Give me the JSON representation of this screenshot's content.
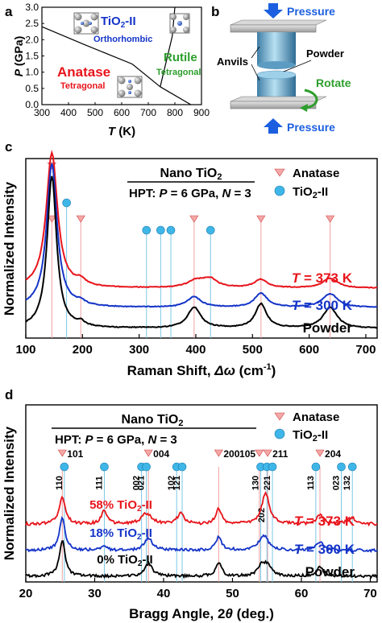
{
  "panels": {
    "a": "a",
    "b": "b",
    "c": "c",
    "d": "d"
  },
  "colors": {
    "red": "#e8141b",
    "blue": "#1434c8",
    "black": "#000000",
    "green": "#2c9e2c",
    "arrow_blue": "#1b5fe0",
    "tick_red": "#f2a0a0",
    "tick_blue": "#7cc8e6",
    "marker_blue": "#3fb6e8",
    "marker_pink": "#f4a8a8"
  },
  "panel_b": {
    "pressure_top": "Pressure",
    "pressure_bottom": "Pressure",
    "anvils": "Anvils",
    "powder": "Powder",
    "rotate": "Rotate"
  },
  "chart_data": [
    {
      "panel": "a",
      "type": "diagram",
      "xlabel": "T (K)",
      "ylabel": "P (GPa)",
      "xlim": [
        300,
        900
      ],
      "ylim": [
        0,
        3.0
      ],
      "xticks": [
        "300",
        "400",
        "500",
        "600",
        "700",
        "800",
        "900"
      ],
      "yticks": [
        "0.0",
        "0.5",
        "1.0",
        "1.5",
        "2.0",
        "2.5",
        "3.0"
      ],
      "phases": [
        {
          "name": "TiO2-II",
          "sub": "Orthorhombic",
          "color": "#1434c8"
        },
        {
          "name": "Anatase",
          "sub": "Tetragonal",
          "color": "#e8141b"
        },
        {
          "name": "Rutile",
          "sub": "Tetragonal",
          "color": "#2c9e2c"
        }
      ],
      "boundaries": [
        {
          "x": [
            300,
            460,
            640,
            745
          ],
          "y": [
            2.4,
            1.85,
            1.25,
            0.55
          ]
        },
        {
          "x": [
            745,
            860
          ],
          "y": [
            0.55,
            0.0
          ]
        },
        {
          "x": [
            745,
            790,
            800
          ],
          "y": [
            0.55,
            2.1,
            3.0
          ]
        }
      ]
    },
    {
      "panel": "c",
      "type": "line",
      "title": "Nano TiO2",
      "subtitle": "HPT: P = 6 GPa, N = 3",
      "xlabel": "Raman Shift, Δω (cm-1)",
      "ylabel": "Normalized Intensity",
      "xlim": [
        100,
        720
      ],
      "xticks": [
        "100",
        "200",
        "300",
        "400",
        "500",
        "600",
        "700"
      ],
      "legend": [
        "Anatase",
        "TiO2-II"
      ],
      "series": [
        {
          "name": "T = 373 K",
          "color": "#e8141b",
          "base": 0.58,
          "peaks": [
            [
              146,
              1.95,
              12
            ],
            [
              197,
              0.08,
              10
            ],
            [
              400,
              0.1,
              18
            ],
            [
              425,
              0.12,
              16
            ],
            [
              515,
              0.12,
              14
            ],
            [
              637,
              0.14,
              16
            ]
          ]
        },
        {
          "name": "T = 300 K",
          "color": "#1434c8",
          "base": 0.3,
          "peaks": [
            [
              146,
              2.08,
              11
            ],
            [
              197,
              0.05,
              10
            ],
            [
              397,
              0.15,
              15
            ],
            [
              515,
              0.2,
              14
            ],
            [
              637,
              0.2,
              16
            ]
          ]
        },
        {
          "name": "Powder",
          "color": "#000000",
          "base": 0.0,
          "peaks": [
            [
              146,
              2.2,
              10
            ],
            [
              197,
              0.06,
              8
            ],
            [
              397,
              0.3,
              14
            ],
            [
              515,
              0.35,
              12
            ],
            [
              637,
              0.3,
              15
            ]
          ]
        }
      ],
      "anatase_markers": [
        146,
        197,
        397,
        515,
        637
      ],
      "tio2ii_markers": [
        172,
        313,
        338,
        356,
        426
      ]
    },
    {
      "panel": "d",
      "type": "line",
      "title": "Nano TiO2",
      "subtitle": "HPT: P = 6 GPa, N = 3",
      "xlabel": "Bragg Angle, 2θ (deg.)",
      "ylabel": "Normalized Intensity",
      "xlim": [
        20,
        71
      ],
      "xticks": [
        "20",
        "30",
        "40",
        "50",
        "60",
        "70"
      ],
      "legend": [
        "Anatase",
        "TiO2-II"
      ],
      "series": [
        {
          "name": "T = 373 K",
          "label": "58% TiO2-II",
          "color": "#e8141b",
          "base": 1.7,
          "peaks": [
            [
              25.3,
              0.9,
              0.55
            ],
            [
              31.4,
              0.45,
              0.5
            ],
            [
              37.5,
              0.35,
              0.9
            ],
            [
              42.5,
              0.35,
              0.6
            ],
            [
              48.0,
              0.5,
              0.5
            ],
            [
              54.8,
              1.0,
              0.7
            ],
            [
              62.7,
              0.3,
              0.6
            ],
            [
              67.3,
              0.2,
              0.8
            ]
          ]
        },
        {
          "name": "T = 300 K",
          "label": "18% TiO2-II",
          "color": "#1434c8",
          "base": 0.85,
          "peaks": [
            [
              25.3,
              1.05,
              0.5
            ],
            [
              31.4,
              0.12,
              0.5
            ],
            [
              37.8,
              0.4,
              0.7
            ],
            [
              48.0,
              0.45,
              0.5
            ],
            [
              54.5,
              0.5,
              0.8
            ],
            [
              62.7,
              0.28,
              0.6
            ]
          ]
        },
        {
          "name": "Powder",
          "label": "0% TiO2-II",
          "color": "#000000",
          "base": 0.0,
          "peaks": [
            [
              25.3,
              1.15,
              0.5
            ],
            [
              37.8,
              0.4,
              0.7
            ],
            [
              48.0,
              0.45,
              0.5
            ],
            [
              54.2,
              0.35,
              0.6
            ],
            [
              55.1,
              0.35,
              0.6
            ],
            [
              62.7,
              0.3,
              0.6
            ]
          ]
        }
      ],
      "anatase_markers": [
        {
          "x": 25.3,
          "label": "101"
        },
        {
          "x": 37.8,
          "label": "004"
        },
        {
          "x": 48.0,
          "label": "200"
        },
        {
          "x": 53.9,
          "label": ""
        },
        {
          "x": 55.1,
          "label": "211"
        },
        {
          "x": 62.7,
          "label": "204"
        }
      ],
      "tio2ii_markers": [
        {
          "x": 25.6,
          "label": "110"
        },
        {
          "x": 31.4,
          "label": "111"
        },
        {
          "x": 36.8,
          "label": "002"
        },
        {
          "x": 37.5,
          "label": "021"
        },
        {
          "x": 41.9,
          "label": "102"
        },
        {
          "x": 42.7,
          "label": "121"
        },
        {
          "x": 54.1,
          "label": "130"
        },
        {
          "x": 55.0,
          "label": "202"
        },
        {
          "x": 55.8,
          "label": "221"
        },
        {
          "x": 62.1,
          "label": "113"
        },
        {
          "x": 65.8,
          "label": "023"
        },
        {
          "x": 67.4,
          "label": "132"
        }
      ],
      "extra_labels": {
        "105": "105"
      }
    }
  ]
}
